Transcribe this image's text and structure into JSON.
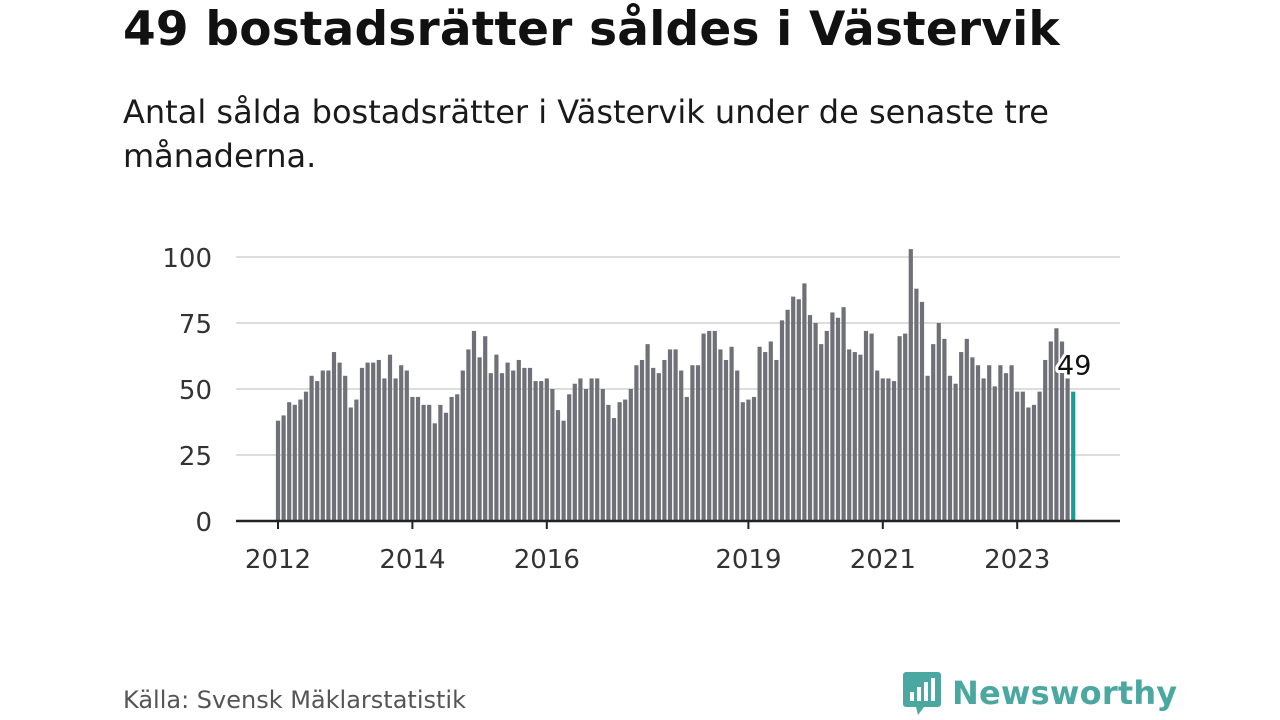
{
  "title": "49 bostadsrätter såldes i Västervik",
  "subtitle": "Antal sålda bostadsrätter i Västervik under de senaste tre månaderna.",
  "source": "Källa: Svensk Mäklarstatistik",
  "brand": {
    "name": "Newsworthy",
    "icon": "newsworthy-logo-icon"
  },
  "colors": {
    "bar": "#707078",
    "highlight": "#1a9b93",
    "grid": "#dddddd",
    "axis": "#222222",
    "brand": "#4aa8a0"
  },
  "chart_data": {
    "type": "bar",
    "title": "49 bostadsrätter såldes i Västervik",
    "xlabel": "",
    "ylabel": "",
    "ylim": [
      0,
      100
    ],
    "yticks": [
      0,
      25,
      50,
      75,
      100
    ],
    "xticks": [
      {
        "label": "2012",
        "index": 0
      },
      {
        "label": "2014",
        "index": 24
      },
      {
        "label": "2016",
        "index": 48
      },
      {
        "label": "2019",
        "index": 84
      },
      {
        "label": "2021",
        "index": 108
      },
      {
        "label": "2023",
        "index": 132
      }
    ],
    "highlight_label": "49",
    "start": "2012-01",
    "values": [
      38,
      40,
      45,
      44,
      46,
      49,
      55,
      53,
      57,
      57,
      64,
      60,
      55,
      43,
      46,
      58,
      60,
      60,
      61,
      54,
      63,
      54,
      59,
      57,
      47,
      47,
      44,
      44,
      37,
      44,
      41,
      47,
      48,
      57,
      65,
      72,
      62,
      70,
      56,
      63,
      56,
      60,
      57,
      61,
      58,
      58,
      53,
      53,
      54,
      50,
      42,
      38,
      48,
      52,
      54,
      50,
      54,
      54,
      50,
      44,
      39,
      45,
      46,
      50,
      59,
      61,
      67,
      58,
      56,
      61,
      65,
      65,
      57,
      47,
      59,
      59,
      71,
      72,
      72,
      65,
      61,
      66,
      57,
      45,
      46,
      47,
      66,
      64,
      68,
      61,
      76,
      80,
      85,
      84,
      90,
      78,
      75,
      67,
      72,
      79,
      77,
      81,
      65,
      64,
      63,
      72,
      71,
      57,
      54,
      54,
      53,
      70,
      71,
      103,
      88,
      83,
      55,
      67,
      75,
      69,
      55,
      52,
      64,
      69,
      62,
      59,
      54,
      59,
      51,
      59,
      56,
      59,
      49,
      49,
      43,
      44,
      49,
      61,
      68,
      73,
      68,
      54,
      49
    ]
  }
}
